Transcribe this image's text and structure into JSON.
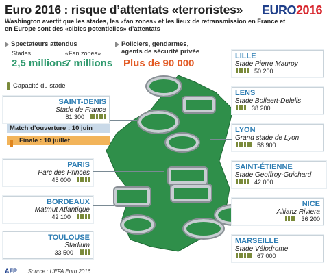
{
  "header": {
    "title": "Euro 2016 : risque d’attentats «terroristes»",
    "logo": "EURO",
    "logo_year": "2016",
    "subtitle": "Washington avertit que les stades, les «fan zones» et les lieux de retransmission en France et en Europe sont des «cibles potentielles» d’attentats"
  },
  "stats": {
    "spectators_title": "Spectateurs attendus",
    "stadiums_label": "Stades",
    "stadiums_value": "2,5 millions",
    "fanzones_label": "«Fan zones»",
    "fanzones_value": "7 millions",
    "security_title": "Policiers, gendarmes, agents de sécurité privée",
    "security_value": "Plus de 90 000"
  },
  "legend": {
    "capacity": "Capacité du stade"
  },
  "stadiums": [
    {
      "city": "SAINT-DENIS",
      "stadium": "Stade de France",
      "capacity": "81 300",
      "people": 6
    },
    {
      "city": "PARIS",
      "stadium": "Parc des Princes",
      "capacity": "45 000",
      "people": 5
    },
    {
      "city": "BORDEAUX",
      "stadium": "Matmut Atlantique",
      "capacity": "42 100",
      "people": 5
    },
    {
      "city": "TOULOUSE",
      "stadium": "Stadium",
      "capacity": "33 500",
      "people": 4
    },
    {
      "city": "LILLE",
      "stadium": "Stade Pierre Mauroy",
      "capacity": "50 200",
      "people": 5
    },
    {
      "city": "LENS",
      "stadium": "Stade Bollaert-Delelis",
      "capacity": "38 200",
      "people": 4
    },
    {
      "city": "LYON",
      "stadium": "Grand stade de Lyon",
      "capacity": "58 900",
      "people": 6
    },
    {
      "city": "SAINT-ÉTIENNE",
      "stadium": "Stade Geoffroy-Guichard",
      "capacity": "42 000",
      "people": 5
    },
    {
      "city": "NICE",
      "stadium": "Allianz Riviera",
      "capacity": "36 200",
      "people": 4
    },
    {
      "city": "MARSEILLE",
      "stadium": "Stade Vélodrome",
      "capacity": "67 000",
      "people": 6
    }
  ],
  "matches": {
    "opening": "Match d’ouverture : 10 juin",
    "final": "Finale : 10 juillet"
  },
  "footer": {
    "agency": "AFP",
    "source": "Source : UEFA Euro 2016"
  }
}
